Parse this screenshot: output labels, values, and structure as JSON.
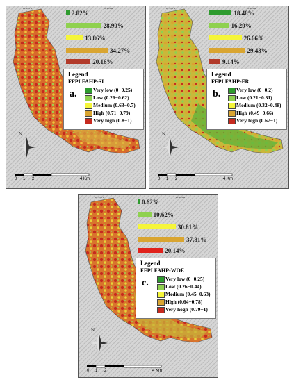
{
  "panels": [
    {
      "letter": "a.",
      "legend_title": "Legend",
      "legend_subtitle": "FFPI FAHP-SI",
      "classes": [
        {
          "label": "Very low (0−0.25)",
          "color": "#2e9b2e"
        },
        {
          "label": "Low (0.26−0.62)",
          "color": "#8fd14f"
        },
        {
          "label": "Medium (0.63−0.7)",
          "color": "#f5f53a"
        },
        {
          "label": "High (0.71−0.79)",
          "color": "#d9a531"
        },
        {
          "label": "Very high (0.8−1)",
          "color": "#c62a1f"
        }
      ],
      "percentages": [
        "2.82%",
        "28.90%",
        "13.86%",
        "34.27%",
        "20.16%"
      ],
      "percent_values": [
        2.82,
        28.9,
        13.86,
        34.27,
        20.16
      ],
      "bar_colors": [
        "#2e9b2e",
        "#8fd14f",
        "#f5f53a",
        "#d9a531",
        "#b23a2a"
      ],
      "scale_ticks": [
        "0",
        "1",
        "2",
        "4 Km"
      ]
    },
    {
      "letter": "b.",
      "legend_title": "Legend",
      "legend_subtitle": "FFPI FAHP-FR",
      "classes": [
        {
          "label": "Very low (0−0.2)",
          "color": "#2e9b2e"
        },
        {
          "label": "Low (0.21−0.31)",
          "color": "#8fd14f"
        },
        {
          "label": "Medium (0.32−0.48)",
          "color": "#f5f53a"
        },
        {
          "label": "High (0.49−0.66)",
          "color": "#d9a531"
        },
        {
          "label": "Very high (0.67−1)",
          "color": "#c62a1f"
        }
      ],
      "percentages": [
        "18.48%",
        "16.29%",
        "26.66%",
        "29.43%",
        "9.14%"
      ],
      "percent_values": [
        18.48,
        16.29,
        26.66,
        29.43,
        9.14
      ],
      "bar_colors": [
        "#2e9b2e",
        "#8fd14f",
        "#f5f53a",
        "#d9a531",
        "#b23a2a"
      ],
      "scale_ticks": [
        "0",
        "1",
        "2",
        "4 Km"
      ]
    },
    {
      "letter": "c.",
      "legend_title": "Legend",
      "legend_subtitle": "FFPI FAHP-WOE",
      "classes": [
        {
          "label": "Very low (0−0.25)",
          "color": "#2e9b2e"
        },
        {
          "label": "Low (0.26−0.44)",
          "color": "#8fd14f"
        },
        {
          "label": "Medium (0.45−0.63)",
          "color": "#f5f53a"
        },
        {
          "label": "High (0.64−0.78)",
          "color": "#d9a531"
        },
        {
          "label": "Very hogh (0.79−1)",
          "color": "#c62a1f"
        }
      ],
      "percentages": [
        "0.62%",
        "10.62%",
        "30.81%",
        "37.81%",
        "20.14%"
      ],
      "percent_values": [
        0.62,
        10.62,
        30.81,
        37.81,
        20.14
      ],
      "bar_colors": [
        "#2e9b2e",
        "#8fd14f",
        "#f5f53a",
        "#d9a531",
        "#e0221b"
      ],
      "scale_ticks": [
        "0",
        "1",
        "2",
        "4 Km"
      ]
    }
  ],
  "north_label": "N",
  "coords": {
    "top_a": [
      "28°26'0\"E",
      "28°30'0\"E"
    ],
    "top_b": [
      "28°26'0\"E",
      "28°30'0\"E"
    ],
    "top_c": [
      "28°26'0\"E",
      "28°30'0\"E"
    ]
  }
}
